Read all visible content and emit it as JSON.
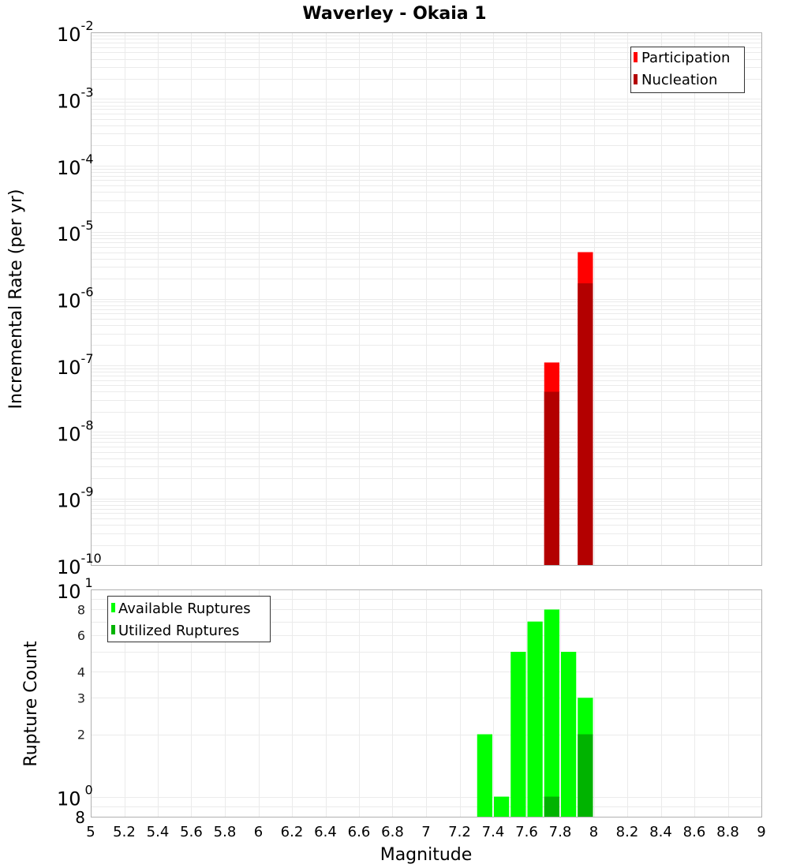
{
  "chart_data": [
    {
      "type": "bar",
      "title": "Waverley - Okaia 1",
      "xlabel": "Magnitude",
      "ylabel": "Incremental Rate (per yr)",
      "yscale": "log",
      "xlim": [
        5,
        9
      ],
      "ylim": [
        1e-10,
        0.01
      ],
      "grid": true,
      "legend_position": "upper right",
      "x_ticks": [
        "5",
        "5.2",
        "5.4",
        "5.6",
        "5.8",
        "6",
        "6.2",
        "6.4",
        "6.6",
        "6.8",
        "7",
        "7.2",
        "7.4",
        "7.6",
        "7.8",
        "8",
        "8.2",
        "8.4",
        "8.6",
        "8.8",
        "9"
      ],
      "y_ticks": [
        {
          "base": "10",
          "exp": "-2"
        },
        {
          "base": "10",
          "exp": "-3"
        },
        {
          "base": "10",
          "exp": "-4"
        },
        {
          "base": "10",
          "exp": "-5"
        },
        {
          "base": "10",
          "exp": "-6"
        },
        {
          "base": "10",
          "exp": "-7"
        },
        {
          "base": "10",
          "exp": "-8"
        },
        {
          "base": "10",
          "exp": "-9"
        },
        {
          "base": "10",
          "exp": "-10"
        }
      ],
      "bin_width": 0.1,
      "series": [
        {
          "name": "Participation",
          "color": "#ff0000",
          "x": [
            7.75,
            7.95
          ],
          "values": [
            1.1e-07,
            5e-06
          ]
        },
        {
          "name": "Nucleation",
          "color": "#b30000",
          "x": [
            7.75,
            7.95
          ],
          "values": [
            4e-08,
            1.7e-06
          ]
        }
      ]
    },
    {
      "type": "bar",
      "title": "",
      "xlabel": "Magnitude",
      "ylabel": "Rupture Count",
      "yscale": "log",
      "xlim": [
        5,
        9
      ],
      "ylim": [
        0.8,
        10
      ],
      "grid": true,
      "legend_position": "upper left",
      "x_ticks": [
        "5",
        "5.2",
        "5.4",
        "5.6",
        "5.8",
        "6",
        "6.2",
        "6.4",
        "6.6",
        "6.8",
        "7",
        "7.2",
        "7.4",
        "7.6",
        "7.8",
        "8",
        "8.2",
        "8.4",
        "8.6",
        "8.8",
        "9"
      ],
      "y_ticks_major": [
        {
          "base": "10",
          "exp": "1",
          "value": 10
        },
        {
          "base": "10",
          "exp": "0",
          "value": 1
        }
      ],
      "y_ticks_minor": [
        {
          "label": "8",
          "value": 8
        },
        {
          "label": "6",
          "value": 6
        },
        {
          "label": "4",
          "value": 4
        },
        {
          "label": "3",
          "value": 3
        },
        {
          "label": "2",
          "value": 2
        }
      ],
      "y_bottom_label": "8",
      "bin_width": 0.1,
      "series": [
        {
          "name": "Available Ruptures",
          "color": "#00ff00",
          "x": [
            7.35,
            7.45,
            7.55,
            7.65,
            7.75,
            7.85,
            7.95
          ],
          "values": [
            2,
            1,
            5,
            7,
            8,
            5,
            3
          ]
        },
        {
          "name": "Utilized Ruptures",
          "color": "#00b300",
          "x": [
            7.75,
            7.95
          ],
          "values": [
            1,
            2
          ]
        }
      ]
    }
  ],
  "header": {
    "title": "Waverley - Okaia 1"
  },
  "top_plot": {
    "ylabel": "Incremental Rate (per yr)",
    "legend": [
      {
        "label": "Participation",
        "color": "#ff0000"
      },
      {
        "label": "Nucleation",
        "color": "#b30000"
      }
    ]
  },
  "bottom_plot": {
    "ylabel": "Rupture Count",
    "legend": [
      {
        "label": "Available Ruptures",
        "color": "#00ff00"
      },
      {
        "label": "Utilized Ruptures",
        "color": "#00b300"
      }
    ]
  },
  "x_axis": {
    "label": "Magnitude"
  },
  "colors": {
    "grid": "#ebebeb",
    "frame": "#b0b0b0",
    "legend_border": "#333333"
  }
}
